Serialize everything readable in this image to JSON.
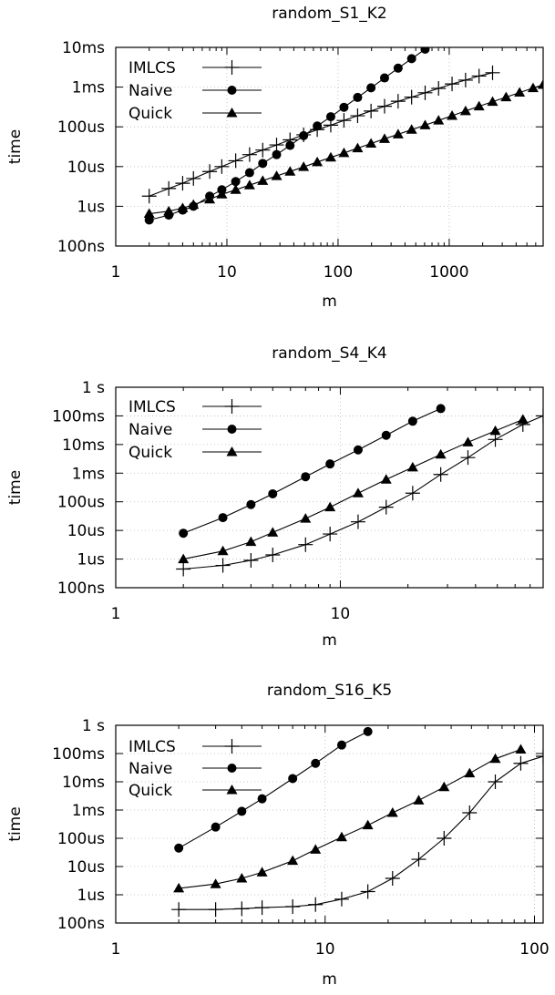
{
  "chart_data": [
    {
      "type": "line",
      "title": "random_S1_K2",
      "xlabel": "m",
      "ylabel": "time",
      "xscale": "log",
      "yscale": "log",
      "xlim": [
        1,
        7000
      ],
      "ylim": [
        1e-07,
        0.01
      ],
      "xticks": [
        {
          "v": 1,
          "label": "1"
        },
        {
          "v": 10,
          "label": "10"
        },
        {
          "v": 100,
          "label": "100"
        },
        {
          "v": 1000,
          "label": "1000"
        }
      ],
      "yticks": [
        {
          "v": 1e-07,
          "label": "100ns"
        },
        {
          "v": 1e-06,
          "label": "1us"
        },
        {
          "v": 1e-05,
          "label": "10us"
        },
        {
          "v": 0.0001,
          "label": "100us"
        },
        {
          "v": 0.001,
          "label": "1ms"
        },
        {
          "v": 0.01,
          "label": "10ms"
        }
      ],
      "grid": true,
      "legend": "top-left",
      "series": [
        {
          "name": "IMLCS",
          "marker": "plus",
          "x": [
            2,
            3,
            4,
            5,
            7,
            9,
            12,
            16,
            21,
            28,
            37,
            49,
            65,
            86,
            113,
            150,
            198,
            262,
            347,
            459,
            607,
            802,
            1061,
            1403,
            1856,
            2455
          ],
          "y": [
            1.8e-06,
            2.8e-06,
            3.8e-06,
            5e-06,
            7.5e-06,
            1e-05,
            1.4e-05,
            2e-05,
            2.6e-05,
            3.5e-05,
            4.7e-05,
            6.3e-05,
            8.5e-05,
            0.00011,
            0.000145,
            0.00019,
            0.00025,
            0.00033,
            0.00044,
            0.00056,
            0.00072,
            0.00093,
            0.0012,
            0.0015,
            0.0019,
            0.0023
          ]
        },
        {
          "name": "Naive",
          "marker": "circle",
          "x": [
            2,
            3,
            4,
            5,
            7,
            9,
            12,
            16,
            21,
            28,
            37,
            49,
            65,
            86,
            113,
            150,
            198,
            262,
            347,
            459,
            607
          ],
          "y": [
            4.5e-07,
            6e-07,
            8e-07,
            1e-06,
            1.8e-06,
            2.6e-06,
            4.2e-06,
            7e-06,
            1.2e-05,
            2e-05,
            3.4e-05,
            6e-05,
            0.000105,
            0.00018,
            0.00031,
            0.00055,
            0.00096,
            0.0017,
            0.003,
            0.0052,
            0.009
          ]
        },
        {
          "name": "Quick",
          "marker": "triangle",
          "x": [
            2,
            3,
            4,
            5,
            7,
            9,
            12,
            16,
            21,
            28,
            37,
            49,
            65,
            86,
            113,
            150,
            198,
            262,
            347,
            459,
            607,
            802,
            1061,
            1403,
            1856,
            2455,
            3247,
            4295,
            5681,
            7000
          ],
          "y": [
            6.5e-07,
            7.5e-07,
            9e-07,
            1.1e-06,
            1.5e-06,
            2e-06,
            2.6e-06,
            3.4e-06,
            4.4e-06,
            5.8e-06,
            7.5e-06,
            9.8e-06,
            1.3e-05,
            1.7e-05,
            2.2e-05,
            2.9e-05,
            3.8e-05,
            5e-05,
            6.5e-05,
            8.5e-05,
            0.00011,
            0.000145,
            0.00019,
            0.00025,
            0.00033,
            0.00043,
            0.00056,
            0.00073,
            0.00095,
            0.00115
          ]
        }
      ]
    },
    {
      "type": "line",
      "title": "random_S4_K4",
      "xlabel": "m",
      "ylabel": "time",
      "xscale": "log",
      "yscale": "log",
      "xlim": [
        1,
        80
      ],
      "ylim": [
        1e-07,
        1
      ],
      "xticks": [
        {
          "v": 1,
          "label": "1"
        },
        {
          "v": 10,
          "label": "10"
        }
      ],
      "yticks": [
        {
          "v": 1e-07,
          "label": "100ns"
        },
        {
          "v": 1e-06,
          "label": "1us"
        },
        {
          "v": 1e-05,
          "label": "10us"
        },
        {
          "v": 0.0001,
          "label": "100us"
        },
        {
          "v": 0.001,
          "label": "1ms"
        },
        {
          "v": 0.01,
          "label": "10ms"
        },
        {
          "v": 0.1,
          "label": "100ms"
        },
        {
          "v": 1,
          "label": "1 s"
        }
      ],
      "grid": true,
      "legend": "top-left",
      "series": [
        {
          "name": "IMLCS",
          "marker": "plus",
          "x": [
            2,
            3,
            4,
            5,
            7,
            9,
            12,
            16,
            21,
            28,
            37,
            49,
            65,
            80
          ],
          "y": [
            4.5e-07,
            6e-07,
            9e-07,
            1.4e-06,
            3.2e-06,
            7.5e-06,
            2e-05,
            6.5e-05,
            0.0002,
            0.0009,
            0.0035,
            0.015,
            0.05,
            0.1
          ]
        },
        {
          "name": "Naive",
          "marker": "circle",
          "x": [
            2,
            3,
            4,
            5,
            7,
            9,
            12,
            16,
            21,
            28
          ],
          "y": [
            8e-06,
            2.8e-05,
            8e-05,
            0.00019,
            0.00075,
            0.0021,
            0.0065,
            0.021,
            0.065,
            0.18
          ]
        },
        {
          "name": "Quick",
          "marker": "triangle",
          "x": [
            2,
            3,
            4,
            5,
            7,
            9,
            12,
            16,
            21,
            28,
            37,
            49,
            65
          ],
          "y": [
            1e-06,
            1.9e-06,
            4e-06,
            8.5e-06,
            2.6e-05,
            6.5e-05,
            0.0002,
            0.0006,
            0.0016,
            0.0045,
            0.012,
            0.03,
            0.075
          ]
        }
      ]
    },
    {
      "type": "line",
      "title": "random_S16_K5",
      "xlabel": "m",
      "ylabel": "time",
      "xscale": "log",
      "yscale": "log",
      "xlim": [
        1,
        110
      ],
      "ylim": [
        1e-07,
        1
      ],
      "xticks": [
        {
          "v": 1,
          "label": "1"
        },
        {
          "v": 10,
          "label": "10"
        },
        {
          "v": 100,
          "label": "100"
        }
      ],
      "yticks": [
        {
          "v": 1e-07,
          "label": "100ns"
        },
        {
          "v": 1e-06,
          "label": "1us"
        },
        {
          "v": 1e-05,
          "label": "10us"
        },
        {
          "v": 0.0001,
          "label": "100us"
        },
        {
          "v": 0.001,
          "label": "1ms"
        },
        {
          "v": 0.01,
          "label": "10ms"
        },
        {
          "v": 0.1,
          "label": "100ms"
        },
        {
          "v": 1,
          "label": "1 s"
        }
      ],
      "grid": true,
      "legend": "top-left",
      "series": [
        {
          "name": "IMLCS",
          "marker": "plus",
          "x": [
            2,
            3,
            4,
            5,
            7,
            9,
            12,
            16,
            21,
            28,
            37,
            49,
            65,
            86,
            110
          ],
          "y": [
            3e-07,
            3e-07,
            3.2e-07,
            3.5e-07,
            3.8e-07,
            4.5e-07,
            7e-07,
            1.3e-06,
            3.8e-06,
            1.8e-05,
            0.0001,
            0.0008,
            0.01,
            0.045,
            0.08
          ]
        },
        {
          "name": "Naive",
          "marker": "circle",
          "x": [
            2,
            3,
            4,
            5,
            7,
            9,
            12,
            16
          ],
          "y": [
            4.5e-05,
            0.00025,
            0.0009,
            0.0025,
            0.013,
            0.045,
            0.2,
            0.6
          ]
        },
        {
          "name": "Quick",
          "marker": "triangle",
          "x": [
            2,
            3,
            4,
            5,
            7,
            9,
            12,
            16,
            21,
            28,
            37,
            49,
            65,
            86
          ],
          "y": [
            1.7e-06,
            2.4e-06,
            3.8e-06,
            6.2e-06,
            1.6e-05,
            4e-05,
            0.00011,
            0.00029,
            0.0008,
            0.0022,
            0.0065,
            0.02,
            0.065,
            0.14
          ]
        }
      ]
    }
  ]
}
